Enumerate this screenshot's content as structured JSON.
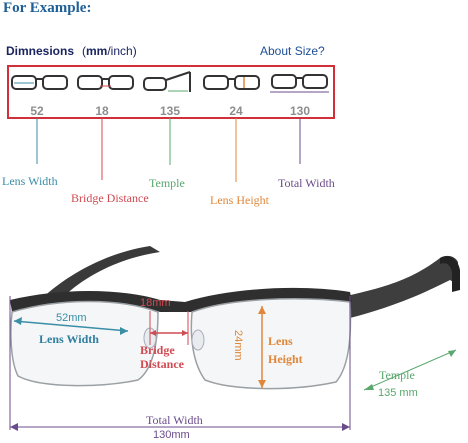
{
  "heading": "For Example:",
  "dimensions": {
    "title": "Dimnesions",
    "unit_bold": "mm",
    "unit_rest": "/inch)",
    "unit_open": "(",
    "about_link": "About Size?"
  },
  "measures": [
    {
      "value": "52",
      "label": "Lens Width",
      "color": "#3a8ea6"
    },
    {
      "value": "18",
      "label": "Bridge Distance",
      "color": "#d04a52"
    },
    {
      "value": "135",
      "label": "Temple",
      "color": "#5aa86e"
    },
    {
      "value": "24",
      "label": "Lens Height",
      "color": "#e0873a"
    },
    {
      "value": "130",
      "label": "Total Width",
      "color": "#6a4c8a"
    }
  ],
  "diagram": {
    "lens_width_value": "52mm",
    "lens_width_label": "Lens Width",
    "bridge_value": "18mm",
    "bridge_label_1": "Bridge",
    "bridge_label_2": "Distance",
    "height_value": "24mm",
    "height_label_1": "Lens",
    "height_label_2": "Height",
    "temple_label": "Temple",
    "temple_value": "135 mm",
    "total_label": "Total Width",
    "total_value": "130mm"
  }
}
